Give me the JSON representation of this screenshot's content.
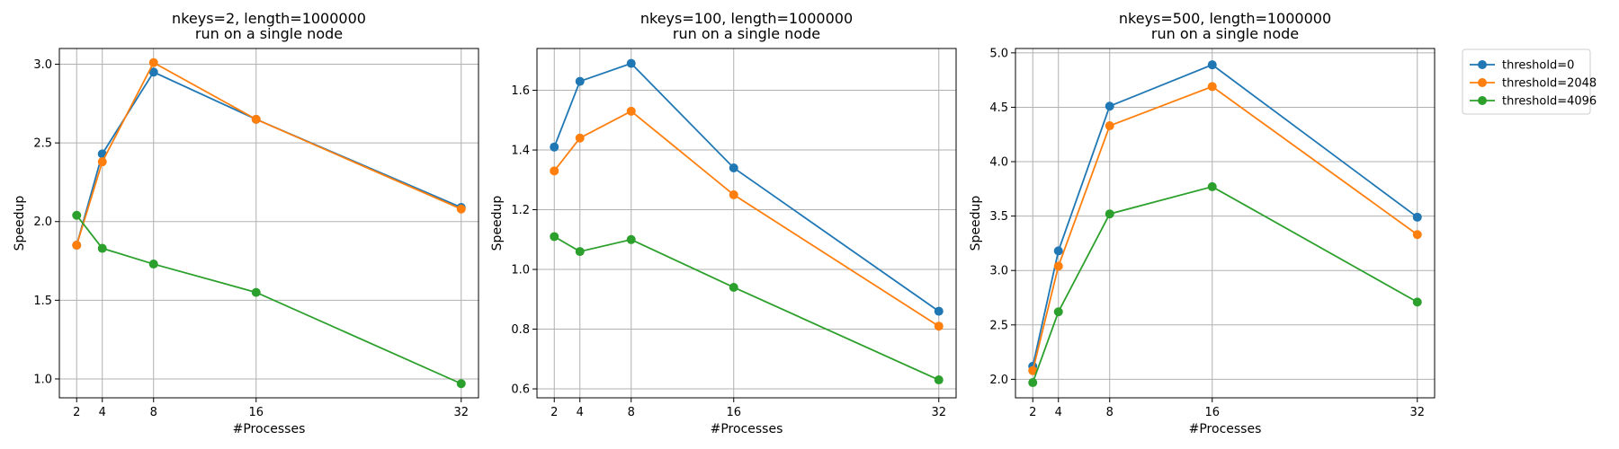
{
  "chart_data": [
    {
      "type": "line",
      "title_line1": "nkeys=2, length=1000000",
      "title_line2": "run on a single node",
      "xlabel": "#Processes",
      "ylabel": "Speedup",
      "x": [
        2,
        4,
        8,
        16,
        32
      ],
      "xticks": [
        2,
        4,
        8,
        16,
        32
      ],
      "ylim": [
        0.88,
        3.1
      ],
      "yticks": [
        1.0,
        1.5,
        2.0,
        2.5,
        3.0
      ],
      "ytick_labels": [
        "1.0",
        "1.5",
        "2.0",
        "2.5",
        "3.0"
      ],
      "grid": true,
      "series": [
        {
          "name": "threshold=0",
          "color": "#1f77b4",
          "values": [
            1.85,
            2.43,
            2.95,
            2.65,
            2.09
          ]
        },
        {
          "name": "threshold=2048",
          "color": "#ff7f0e",
          "values": [
            1.85,
            2.38,
            3.01,
            2.65,
            2.08
          ]
        },
        {
          "name": "threshold=4096",
          "color": "#2ca02c",
          "values": [
            2.04,
            1.83,
            1.73,
            1.55,
            0.97
          ]
        }
      ]
    },
    {
      "type": "line",
      "title_line1": "nkeys=100, length=1000000",
      "title_line2": "run on a single node",
      "xlabel": "#Processes",
      "ylabel": "Speedup",
      "x": [
        2,
        4,
        8,
        16,
        32
      ],
      "xticks": [
        2,
        4,
        8,
        16,
        32
      ],
      "ylim": [
        0.57,
        1.74
      ],
      "yticks": [
        0.6,
        0.8,
        1.0,
        1.2,
        1.4,
        1.6
      ],
      "ytick_labels": [
        "0.6",
        "0.8",
        "1.0",
        "1.2",
        "1.4",
        "1.6"
      ],
      "grid": true,
      "series": [
        {
          "name": "threshold=0",
          "color": "#1f77b4",
          "values": [
            1.41,
            1.63,
            1.69,
            1.34,
            0.86
          ]
        },
        {
          "name": "threshold=2048",
          "color": "#ff7f0e",
          "values": [
            1.33,
            1.44,
            1.53,
            1.25,
            0.81
          ]
        },
        {
          "name": "threshold=4096",
          "color": "#2ca02c",
          "values": [
            1.11,
            1.06,
            1.1,
            0.94,
            0.63
          ]
        }
      ]
    },
    {
      "type": "line",
      "title_line1": "nkeys=500, length=1000000",
      "title_line2": "run on a single node",
      "xlabel": "#Processes",
      "ylabel": "Speedup",
      "x": [
        2,
        4,
        8,
        16,
        32
      ],
      "xticks": [
        2,
        4,
        8,
        16,
        32
      ],
      "ylim": [
        1.83,
        5.04
      ],
      "yticks": [
        2.0,
        2.5,
        3.0,
        3.5,
        4.0,
        4.5,
        5.0
      ],
      "ytick_labels": [
        "2.0",
        "2.5",
        "3.0",
        "3.5",
        "4.0",
        "4.5",
        "5.0"
      ],
      "grid": true,
      "series": [
        {
          "name": "threshold=0",
          "color": "#1f77b4",
          "values": [
            2.12,
            3.18,
            4.51,
            4.89,
            3.49
          ]
        },
        {
          "name": "threshold=2048",
          "color": "#ff7f0e",
          "values": [
            2.08,
            3.04,
            4.33,
            4.69,
            3.33
          ]
        },
        {
          "name": "threshold=4096",
          "color": "#2ca02c",
          "values": [
            1.97,
            2.62,
            3.52,
            3.77,
            2.71
          ]
        }
      ]
    }
  ],
  "legend": {
    "placement": "outside-right",
    "items": [
      {
        "name": "threshold=0",
        "color": "#1f77b4"
      },
      {
        "name": "threshold=2048",
        "color": "#ff7f0e"
      },
      {
        "name": "threshold=4096",
        "color": "#2ca02c"
      }
    ]
  }
}
